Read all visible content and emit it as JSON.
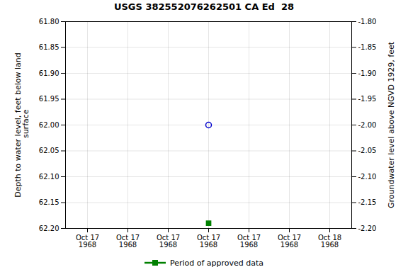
{
  "chart_data": {
    "type": "scatter",
    "title": "USGS 382552076262501 CA Ed  28",
    "y_label": "Depth to water level, feet below land\n surface",
    "y2_label": "Groundwater level above NGVD 1929, feet",
    "categories": [
      "Oct 17\n1968",
      "Oct 17\n1968",
      "Oct 17\n1968",
      "Oct 17\n1968",
      "Oct 17\n1968",
      "Oct 17\n1968",
      "Oct 18\n1968"
    ],
    "series": [
      {
        "color": "#0000cc",
        "marker": "circle",
        "values": [
          null,
          null,
          null,
          62.0,
          null,
          null,
          null
        ]
      },
      {
        "name": "Period of approved data",
        "color": "#008000",
        "marker": "square",
        "values": [
          null,
          null,
          null,
          62.19,
          null,
          null,
          null
        ]
      }
    ],
    "ylim": [
      62.2,
      61.8
    ],
    "yticks": [
      {
        "value": 61.8,
        "label": "61.80"
      },
      {
        "value": 61.85,
        "label": "61.85"
      },
      {
        "value": 61.9,
        "label": "61.90"
      },
      {
        "value": 61.95,
        "label": "61.95"
      },
      {
        "value": 62.0,
        "label": "62.00"
      },
      {
        "value": 62.05,
        "label": "62.05"
      },
      {
        "value": 62.1,
        "label": "62.10"
      },
      {
        "value": 62.15,
        "label": "62.15"
      },
      {
        "value": 62.2,
        "label": "62.20"
      }
    ],
    "y2lim": [
      -2.2,
      -1.8
    ],
    "y2ticks": [
      {
        "value": -1.8,
        "label": "-1.80"
      },
      {
        "value": -1.85,
        "label": "-1.85"
      },
      {
        "value": -1.9,
        "label": "-1.90"
      },
      {
        "value": -1.95,
        "label": "-1.95"
      },
      {
        "value": -2.0,
        "label": "-2.00"
      },
      {
        "value": -2.05,
        "label": "-2.05"
      },
      {
        "value": -2.1,
        "label": "-2.10"
      },
      {
        "value": -2.15,
        "label": "-2.15"
      },
      {
        "value": -2.2,
        "label": "-2.20"
      }
    ],
    "grid": true,
    "legend": "bottom"
  }
}
